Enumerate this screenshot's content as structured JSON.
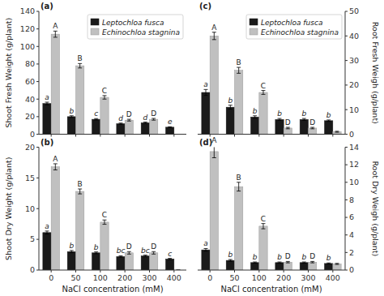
{
  "chart_data": [
    {
      "type": "bar",
      "title": "(a)",
      "categories": [
        "0",
        "50",
        "100",
        "200",
        "300",
        "400"
      ],
      "ylabel": "Shoot Fresh Weight (g/plant)",
      "ylim": [
        0,
        140
      ],
      "yticks": [
        0,
        20,
        40,
        60,
        80,
        100,
        120,
        140
      ],
      "grid": false,
      "legend": "upper right",
      "tick_labels": "y",
      "series": [
        {
          "name": "Leptochloa fusca",
          "color": "#1a1a1a",
          "values": [
            35,
            20,
            17,
            12,
            13,
            8
          ],
          "errors": [
            1.5,
            1.0,
            0.8,
            0.7,
            0.8,
            0.5
          ],
          "annotations": [
            "a",
            "b",
            "c",
            "d",
            "d",
            "e"
          ]
        },
        {
          "name": "Echinochloa stagnina",
          "color": "#c0c0c0",
          "values": [
            114,
            78,
            42,
            16,
            17,
            0
          ],
          "errors": [
            3.5,
            2.5,
            2.0,
            1.0,
            1.0,
            0
          ],
          "annotations": [
            "A",
            "B",
            "C",
            "D",
            "D",
            null
          ]
        }
      ]
    },
    {
      "type": "bar",
      "title": "(b)",
      "categories": [
        "0",
        "50",
        "100",
        "200",
        "300",
        "400"
      ],
      "xlabel": "NaCl concentration (mM)",
      "ylabel": "Shoot Dry Weight (g/plant)",
      "ylim": [
        0,
        20
      ],
      "yticks": [
        0,
        5,
        10,
        15,
        20
      ],
      "grid": false,
      "series": [
        {
          "name": "Leptochloa fusca",
          "color": "#1a1a1a",
          "values": [
            6.1,
            3.0,
            2.8,
            2.2,
            2.3,
            1.8
          ],
          "errors": [
            0.25,
            0.18,
            0.15,
            0.12,
            0.13,
            0.1
          ],
          "annotations": [
            "a",
            "b",
            "b",
            "bc",
            "bc",
            "c"
          ]
        },
        {
          "name": "Echinochloa stagnina",
          "color": "#c0c0c0",
          "values": [
            16.8,
            12.8,
            7.8,
            2.8,
            2.8,
            0
          ],
          "errors": [
            0.5,
            0.4,
            0.35,
            0.2,
            0.2,
            0
          ],
          "annotations": [
            "A",
            "B",
            "C",
            "D",
            "D",
            null
          ]
        }
      ]
    },
    {
      "type": "bar",
      "title": "(c)",
      "categories": [
        "0",
        "50",
        "100",
        "200",
        "300",
        "400"
      ],
      "ylabel": "Root Fresh Weigh (g/plant)",
      "ylim": [
        0,
        50
      ],
      "yticks": [
        0,
        10,
        20,
        30,
        40,
        50
      ],
      "grid": false,
      "legend": "upper right",
      "tick_labels": "y",
      "series": [
        {
          "name": "Leptochloa fusca",
          "color": "#1a1a1a",
          "values": [
            17,
            11,
            7,
            6,
            6,
            5.5
          ],
          "errors": [
            1.2,
            0.8,
            0.5,
            0.4,
            0.4,
            0.3
          ],
          "annotations": [
            "a",
            "b",
            "b",
            "b",
            "b",
            "b"
          ]
        },
        {
          "name": "Echinochloa stagnina",
          "color": "#c0c0c0",
          "values": [
            40,
            26,
            17,
            2.5,
            2.5,
            1.0
          ],
          "errors": [
            1.5,
            1.2,
            0.8,
            0.3,
            0.3,
            0.2
          ],
          "annotations": [
            "A",
            "B",
            "C",
            "D",
            "D",
            null
          ]
        }
      ]
    },
    {
      "type": "bar",
      "title": "(d)",
      "categories": [
        "0",
        "50",
        "100",
        "200",
        "300",
        "400"
      ],
      "xlabel": "NaCl concentration (mM)",
      "ylabel": "Root Dry Weigh (g/plant)",
      "ylim": [
        0,
        14
      ],
      "yticks": [
        0,
        2,
        4,
        6,
        8,
        10,
        12,
        14
      ],
      "grid": false,
      "series": [
        {
          "name": "Leptochloa fusca",
          "color": "#1a1a1a",
          "values": [
            2.3,
            1.1,
            0.85,
            0.85,
            0.85,
            0.75
          ],
          "errors": [
            0.15,
            0.1,
            0.07,
            0.07,
            0.07,
            0.06
          ],
          "annotations": [
            "a",
            "b",
            "b",
            "b",
            "b",
            "b"
          ]
        },
        {
          "name": "Echinochloa stagnina",
          "color": "#c0c0c0",
          "values": [
            13.5,
            9.5,
            5.0,
            0.9,
            0.9,
            0.7
          ],
          "errors": [
            0.7,
            0.5,
            0.3,
            0.08,
            0.08,
            0.06
          ],
          "annotations": [
            "A",
            "B",
            "C",
            "D",
            "D",
            null
          ]
        }
      ]
    }
  ]
}
